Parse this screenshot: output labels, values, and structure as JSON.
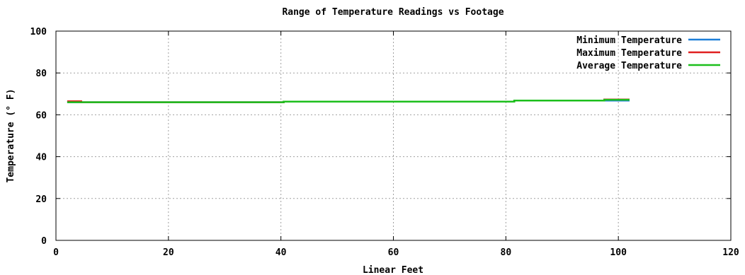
{
  "chart_data": {
    "type": "line",
    "title": "Range of Temperature Readings vs Footage",
    "xlabel": "Linear Feet",
    "ylabel": "Temperature (° F)",
    "xlim": [
      0,
      120
    ],
    "ylim": [
      0,
      100
    ],
    "xticks": [
      0,
      20,
      40,
      60,
      80,
      100,
      120
    ],
    "yticks": [
      0,
      20,
      40,
      60,
      80,
      100
    ],
    "grid": true,
    "legend_position": "top-right",
    "series": [
      {
        "name": "Minimum Temperature",
        "color": "#1e7fd8",
        "x": [
          2,
          40.5,
          40.5,
          81.5,
          81.5,
          102
        ],
        "y": [
          66,
          66,
          66.3,
          66.3,
          66.8,
          66.8
        ]
      },
      {
        "name": "Maximum Temperature",
        "color": "#e02020",
        "x": [
          2,
          4.5,
          4.5,
          40.5,
          40.5,
          81.5,
          81.5,
          97.5,
          97.5,
          102
        ],
        "y": [
          66.5,
          66.5,
          66,
          66,
          66.3,
          66.3,
          66.8,
          66.8,
          67.3,
          67.3
        ]
      },
      {
        "name": "Average Temperature",
        "color": "#1cbf1c",
        "x": [
          2,
          40.5,
          40.5,
          81.5,
          81.5,
          97.5,
          97.5,
          102
        ],
        "y": [
          66,
          66,
          66.3,
          66.3,
          66.8,
          66.8,
          67.2,
          67.2
        ]
      }
    ]
  }
}
